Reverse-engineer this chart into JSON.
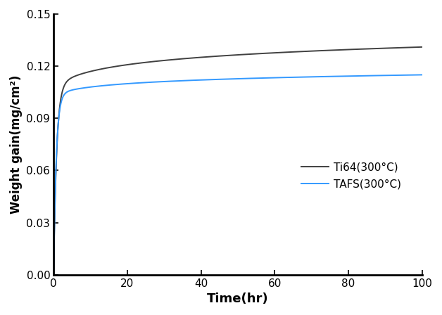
{
  "title": "",
  "xlabel": "Time(hr)",
  "ylabel": "Weight gain(mg/cm²)",
  "xlim": [
    0,
    100
  ],
  "ylim": [
    0.0,
    0.15
  ],
  "yticks": [
    0.0,
    0.03,
    0.06,
    0.09,
    0.12,
    0.15
  ],
  "xticks": [
    0,
    20,
    40,
    60,
    80,
    100
  ],
  "legend": [
    {
      "label": "Ti64(300°C)",
      "color": "#404040"
    },
    {
      "label": "TAFS(300°C)",
      "color": "#3399ff"
    }
  ],
  "ti64_color": "#404040",
  "tafs_color": "#3399ff",
  "background_color": "#ffffff"
}
